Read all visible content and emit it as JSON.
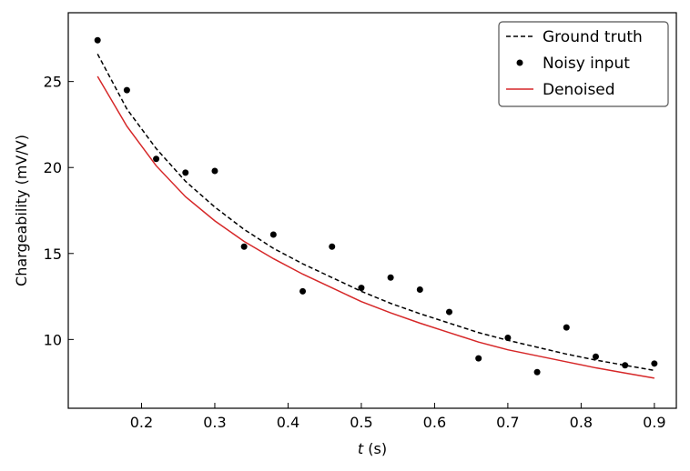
{
  "chart_data": {
    "type": "line",
    "xlabel_var": "t",
    "xlabel_unit": " (s)",
    "ylabel": "Chargeability (mV/V)",
    "xlim": [
      0.1,
      0.93
    ],
    "ylim": [
      6,
      29
    ],
    "xticks": [
      0.2,
      0.3,
      0.4,
      0.5,
      0.6,
      0.7,
      0.8,
      0.9
    ],
    "yticks": [
      10,
      15,
      20,
      25
    ],
    "legend_position": "top-right",
    "series": [
      {
        "name": "Ground truth",
        "style": "dashed-line",
        "color": "#000000",
        "x": [
          0.14,
          0.18,
          0.22,
          0.26,
          0.3,
          0.34,
          0.38,
          0.42,
          0.46,
          0.5,
          0.54,
          0.58,
          0.62,
          0.66,
          0.7,
          0.74,
          0.78,
          0.82,
          0.86,
          0.9
        ],
        "y": [
          26.6,
          23.4,
          21.1,
          19.2,
          17.7,
          16.4,
          15.3,
          14.4,
          13.6,
          12.8,
          12.1,
          11.5,
          10.95,
          10.4,
          9.95,
          9.55,
          9.15,
          8.8,
          8.5,
          8.2
        ]
      },
      {
        "name": "Noisy input",
        "style": "markers",
        "color": "#000000",
        "x": [
          0.14,
          0.18,
          0.22,
          0.26,
          0.3,
          0.34,
          0.38,
          0.42,
          0.46,
          0.5,
          0.54,
          0.58,
          0.62,
          0.66,
          0.7,
          0.74,
          0.78,
          0.82,
          0.86,
          0.9
        ],
        "y": [
          27.4,
          24.5,
          20.5,
          19.7,
          19.8,
          15.4,
          16.1,
          12.8,
          15.4,
          13.0,
          13.6,
          12.9,
          11.6,
          8.9,
          10.1,
          8.1,
          10.7,
          9.0,
          8.5,
          8.6
        ]
      },
      {
        "name": "Denoised",
        "style": "solid-line",
        "color": "#d62728",
        "x": [
          0.14,
          0.18,
          0.22,
          0.26,
          0.3,
          0.34,
          0.38,
          0.42,
          0.46,
          0.5,
          0.54,
          0.58,
          0.62,
          0.66,
          0.7,
          0.74,
          0.78,
          0.82,
          0.86,
          0.9
        ],
        "y": [
          25.3,
          22.4,
          20.1,
          18.3,
          16.9,
          15.7,
          14.7,
          13.8,
          13.0,
          12.2,
          11.55,
          10.95,
          10.4,
          9.85,
          9.4,
          9.05,
          8.7,
          8.35,
          8.05,
          7.75
        ]
      }
    ]
  }
}
